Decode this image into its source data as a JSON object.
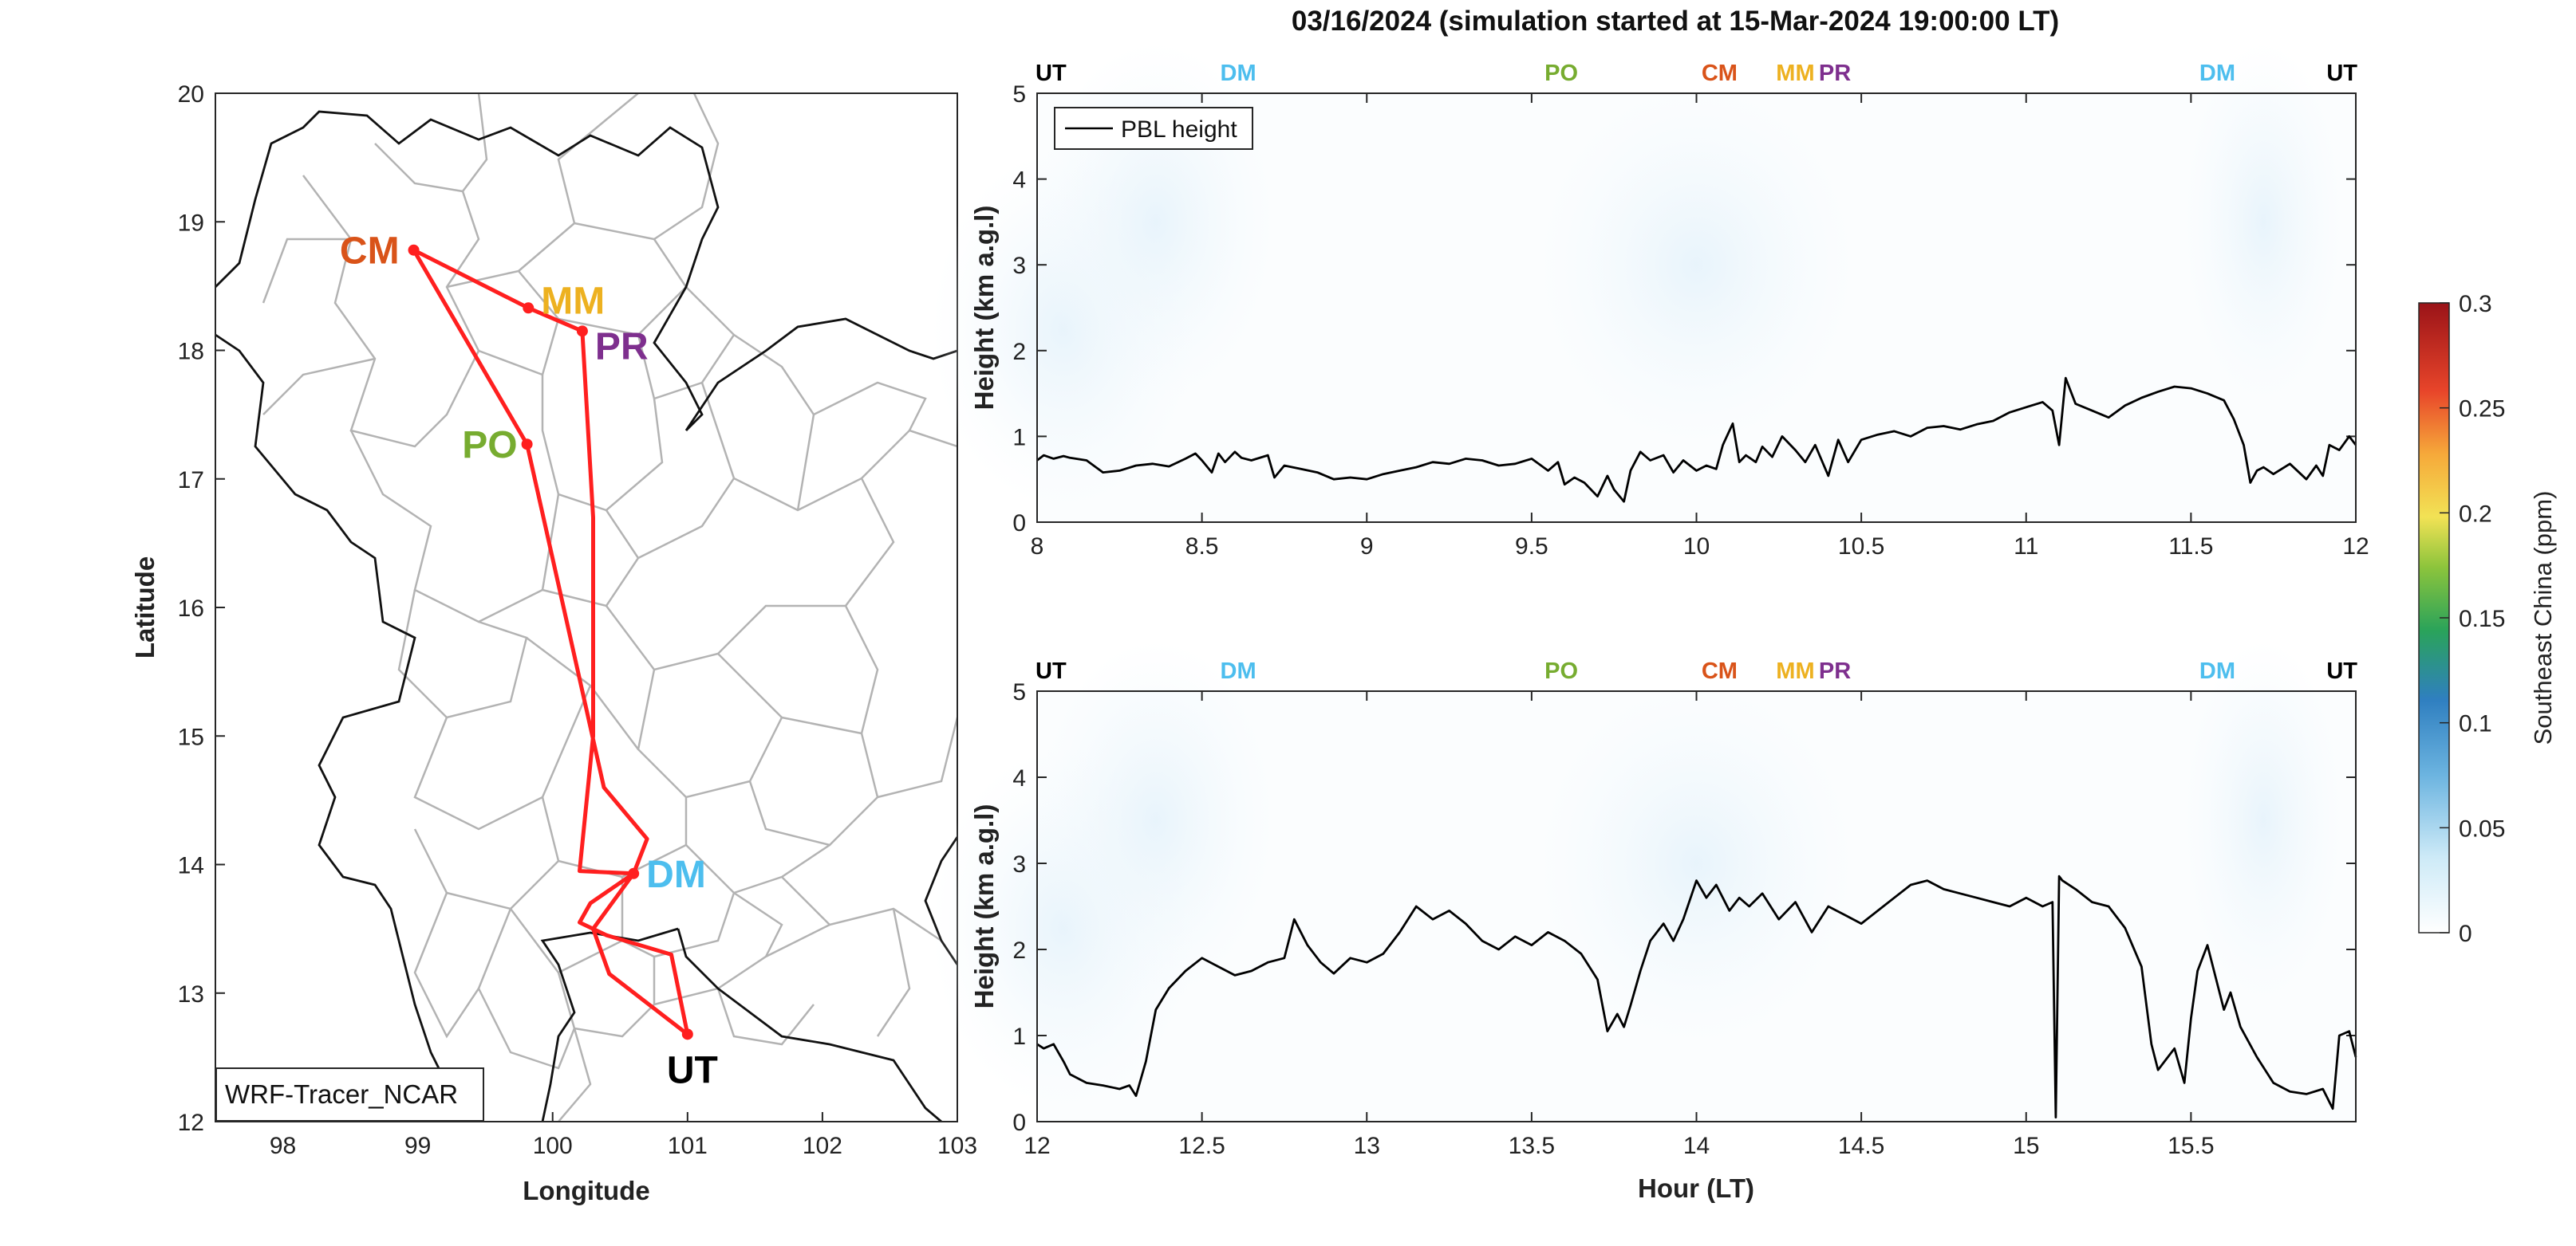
{
  "figure": {
    "title": "03/16/2024 (simulation started at 15-Mar-2024 19:00:00 LT)"
  },
  "colors": {
    "CM": "#d95319",
    "MM": "#edb120",
    "PR": "#7e2f8e",
    "PO": "#77ac30",
    "DM": "#4dbeee",
    "UT": "#000000",
    "route": "#ff1f1f"
  },
  "chart_data": [
    {
      "type": "scatter",
      "name": "map",
      "xlabel": "Longitude",
      "ylabel": "Latitude",
      "xlim": [
        97.5,
        103
      ],
      "ylim": [
        12,
        20
      ],
      "x_ticks": [
        "98",
        "99",
        "100",
        "101",
        "102",
        "103"
      ],
      "y_ticks": [
        "12",
        "13",
        "14",
        "15",
        "16",
        "17",
        "18",
        "19",
        "20"
      ],
      "annotation": "WRF-Tracer_NCAR",
      "sites": [
        {
          "label": "CM",
          "lon": 98.97,
          "lat": 18.78
        },
        {
          "label": "MM",
          "lon": 99.82,
          "lat": 18.33
        },
        {
          "label": "PR",
          "lon": 100.22,
          "lat": 18.15
        },
        {
          "label": "PO",
          "lon": 99.81,
          "lat": 17.27
        },
        {
          "label": "DM",
          "lon": 100.6,
          "lat": 13.93
        },
        {
          "label": "UT",
          "lon": 101.0,
          "lat": 12.68
        }
      ],
      "route": {
        "lon": [
          101.0,
          100.42,
          100.3,
          100.6,
          100.2,
          100.3,
          100.3,
          100.22,
          99.82,
          98.97,
          99.81,
          100.38,
          100.7,
          100.6,
          100.28,
          100.2,
          100.4,
          100.88,
          101.0
        ],
        "lat": [
          12.68,
          13.15,
          13.5,
          13.93,
          13.95,
          15.0,
          16.7,
          18.15,
          18.33,
          18.78,
          17.27,
          14.6,
          14.2,
          13.93,
          13.7,
          13.55,
          13.45,
          13.3,
          12.68
        ]
      }
    },
    {
      "type": "line",
      "name": "top-panel",
      "xlabel": "",
      "ylabel": "Height (km a.g.l)",
      "xlim": [
        8,
        12
      ],
      "ylim": [
        0,
        5
      ],
      "x_ticks": [
        "8",
        "8.5",
        "9",
        "9.5",
        "10",
        "10.5",
        "11",
        "11.5",
        "12"
      ],
      "y_ticks": [
        "0",
        "1",
        "2",
        "3",
        "4",
        "5"
      ],
      "legend": {
        "position": "top-left",
        "entry": "PBL height"
      },
      "site_markers": [
        {
          "label": "UT",
          "x": 8.0
        },
        {
          "label": "DM",
          "x": 8.61
        },
        {
          "label": "PO",
          "x": 9.59
        },
        {
          "label": "CM",
          "x": 10.07
        },
        {
          "label": "MM",
          "x": 10.3
        },
        {
          "label": "PR",
          "x": 10.42
        },
        {
          "label": "DM",
          "x": 11.58
        },
        {
          "label": "UT",
          "x": 11.97
        }
      ],
      "series": [
        {
          "name": "PBL height",
          "x": [
            8.0,
            8.02,
            8.05,
            8.08,
            8.1,
            8.15,
            8.2,
            8.25,
            8.3,
            8.35,
            8.4,
            8.45,
            8.48,
            8.5,
            8.53,
            8.55,
            8.57,
            8.6,
            8.62,
            8.65,
            8.7,
            8.72,
            8.75,
            8.8,
            8.85,
            8.9,
            8.95,
            9.0,
            9.05,
            9.1,
            9.15,
            9.2,
            9.25,
            9.3,
            9.35,
            9.4,
            9.45,
            9.5,
            9.55,
            9.58,
            9.6,
            9.63,
            9.66,
            9.7,
            9.73,
            9.75,
            9.78,
            9.8,
            9.83,
            9.86,
            9.9,
            9.93,
            9.96,
            10.0,
            10.03,
            10.06,
            10.08,
            10.11,
            10.13,
            10.15,
            10.18,
            10.2,
            10.23,
            10.26,
            10.3,
            10.33,
            10.36,
            10.4,
            10.43,
            10.46,
            10.5,
            10.55,
            10.6,
            10.65,
            10.7,
            10.75,
            10.8,
            10.85,
            10.9,
            10.95,
            11.0,
            11.05,
            11.08,
            11.1,
            11.12,
            11.15,
            11.2,
            11.25,
            11.3,
            11.35,
            11.4,
            11.45,
            11.5,
            11.55,
            11.6,
            11.63,
            11.66,
            11.68,
            11.7,
            11.72,
            11.75,
            11.8,
            11.85,
            11.88,
            11.9,
            11.92,
            11.95,
            11.98,
            12.0
          ],
          "y": [
            0.72,
            0.78,
            0.74,
            0.77,
            0.75,
            0.72,
            0.58,
            0.6,
            0.66,
            0.68,
            0.65,
            0.74,
            0.8,
            0.72,
            0.58,
            0.8,
            0.7,
            0.82,
            0.75,
            0.72,
            0.78,
            0.52,
            0.66,
            0.62,
            0.58,
            0.5,
            0.52,
            0.5,
            0.56,
            0.6,
            0.64,
            0.7,
            0.68,
            0.74,
            0.72,
            0.66,
            0.68,
            0.74,
            0.6,
            0.7,
            0.44,
            0.52,
            0.46,
            0.3,
            0.54,
            0.38,
            0.24,
            0.6,
            0.82,
            0.72,
            0.78,
            0.58,
            0.72,
            0.6,
            0.66,
            0.62,
            0.9,
            1.15,
            0.7,
            0.78,
            0.7,
            0.88,
            0.76,
            1.0,
            0.84,
            0.7,
            0.9,
            0.54,
            0.96,
            0.7,
            0.96,
            1.02,
            1.06,
            1.0,
            1.1,
            1.12,
            1.08,
            1.14,
            1.18,
            1.28,
            1.34,
            1.4,
            1.3,
            0.9,
            1.68,
            1.38,
            1.3,
            1.22,
            1.36,
            1.45,
            1.52,
            1.58,
            1.56,
            1.5,
            1.42,
            1.2,
            0.9,
            0.46,
            0.6,
            0.64,
            0.56,
            0.68,
            0.5,
            0.66,
            0.54,
            0.9,
            0.84,
            1.0,
            0.9
          ]
        }
      ]
    },
    {
      "type": "line",
      "name": "bottom-panel",
      "xlabel": "Hour (LT)",
      "ylabel": "Height (km a.g.l)",
      "xlim": [
        12,
        16
      ],
      "ylim": [
        0,
        5
      ],
      "x_ticks": [
        "12",
        "12.5",
        "13",
        "13.5",
        "14",
        "14.5",
        "15",
        "15.5"
      ],
      "y_ticks": [
        "0",
        "1",
        "2",
        "3",
        "4",
        "5"
      ],
      "site_markers": [
        {
          "label": "UT",
          "x": 12.0
        },
        {
          "label": "DM",
          "x": 12.61
        },
        {
          "label": "PO",
          "x": 13.59
        },
        {
          "label": "CM",
          "x": 14.07
        },
        {
          "label": "MM",
          "x": 14.3
        },
        {
          "label": "PR",
          "x": 14.42
        },
        {
          "label": "DM",
          "x": 15.58
        },
        {
          "label": "UT",
          "x": 15.97
        }
      ],
      "series": [
        {
          "name": "PBL height",
          "x": [
            12.0,
            12.02,
            12.05,
            12.08,
            12.1,
            12.15,
            12.2,
            12.25,
            12.28,
            12.3,
            12.33,
            12.36,
            12.4,
            12.45,
            12.5,
            12.55,
            12.6,
            12.65,
            12.7,
            12.75,
            12.78,
            12.82,
            12.86,
            12.9,
            12.95,
            13.0,
            13.05,
            13.1,
            13.15,
            13.2,
            13.25,
            13.3,
            13.35,
            13.4,
            13.45,
            13.5,
            13.55,
            13.6,
            13.65,
            13.7,
            13.73,
            13.76,
            13.78,
            13.8,
            13.83,
            13.86,
            13.9,
            13.93,
            13.96,
            14.0,
            14.03,
            14.06,
            14.1,
            14.13,
            14.16,
            14.2,
            14.25,
            14.3,
            14.35,
            14.4,
            14.45,
            14.5,
            14.55,
            14.6,
            14.65,
            14.7,
            14.75,
            14.8,
            14.85,
            14.9,
            14.95,
            15.0,
            15.05,
            15.08,
            15.09,
            15.1,
            15.11,
            15.15,
            15.2,
            15.25,
            15.3,
            15.35,
            15.38,
            15.4,
            15.42,
            15.45,
            15.48,
            15.5,
            15.52,
            15.55,
            15.58,
            15.6,
            15.62,
            15.65,
            15.7,
            15.75,
            15.8,
            15.85,
            15.9,
            15.93,
            15.95,
            15.98,
            16.0
          ],
          "y": [
            0.9,
            0.85,
            0.9,
            0.7,
            0.55,
            0.45,
            0.42,
            0.38,
            0.42,
            0.3,
            0.7,
            1.3,
            1.55,
            1.75,
            1.9,
            1.8,
            1.7,
            1.75,
            1.85,
            1.9,
            2.35,
            2.05,
            1.85,
            1.72,
            1.9,
            1.85,
            1.95,
            2.2,
            2.5,
            2.35,
            2.45,
            2.3,
            2.1,
            2.0,
            2.15,
            2.05,
            2.2,
            2.1,
            1.95,
            1.65,
            1.05,
            1.25,
            1.1,
            1.35,
            1.75,
            2.1,
            2.3,
            2.1,
            2.35,
            2.8,
            2.6,
            2.75,
            2.45,
            2.6,
            2.5,
            2.65,
            2.35,
            2.55,
            2.2,
            2.5,
            2.4,
            2.3,
            2.45,
            2.6,
            2.75,
            2.8,
            2.7,
            2.65,
            2.6,
            2.55,
            2.5,
            2.6,
            2.5,
            2.55,
            0.05,
            2.85,
            2.8,
            2.7,
            2.55,
            2.5,
            2.25,
            1.8,
            0.9,
            0.6,
            0.7,
            0.85,
            0.45,
            1.2,
            1.75,
            2.05,
            1.6,
            1.3,
            1.5,
            1.1,
            0.75,
            0.45,
            0.35,
            0.32,
            0.38,
            0.15,
            1.0,
            1.05,
            0.75
          ]
        }
      ]
    },
    {
      "type": "heatmap",
      "name": "colorbar",
      "label": "Southeast China (ppm)",
      "clim": [
        0,
        0.3
      ],
      "ticks": [
        "0",
        "0.05",
        "0.1",
        "0.15",
        "0.2",
        "0.25",
        "0.3"
      ]
    }
  ]
}
